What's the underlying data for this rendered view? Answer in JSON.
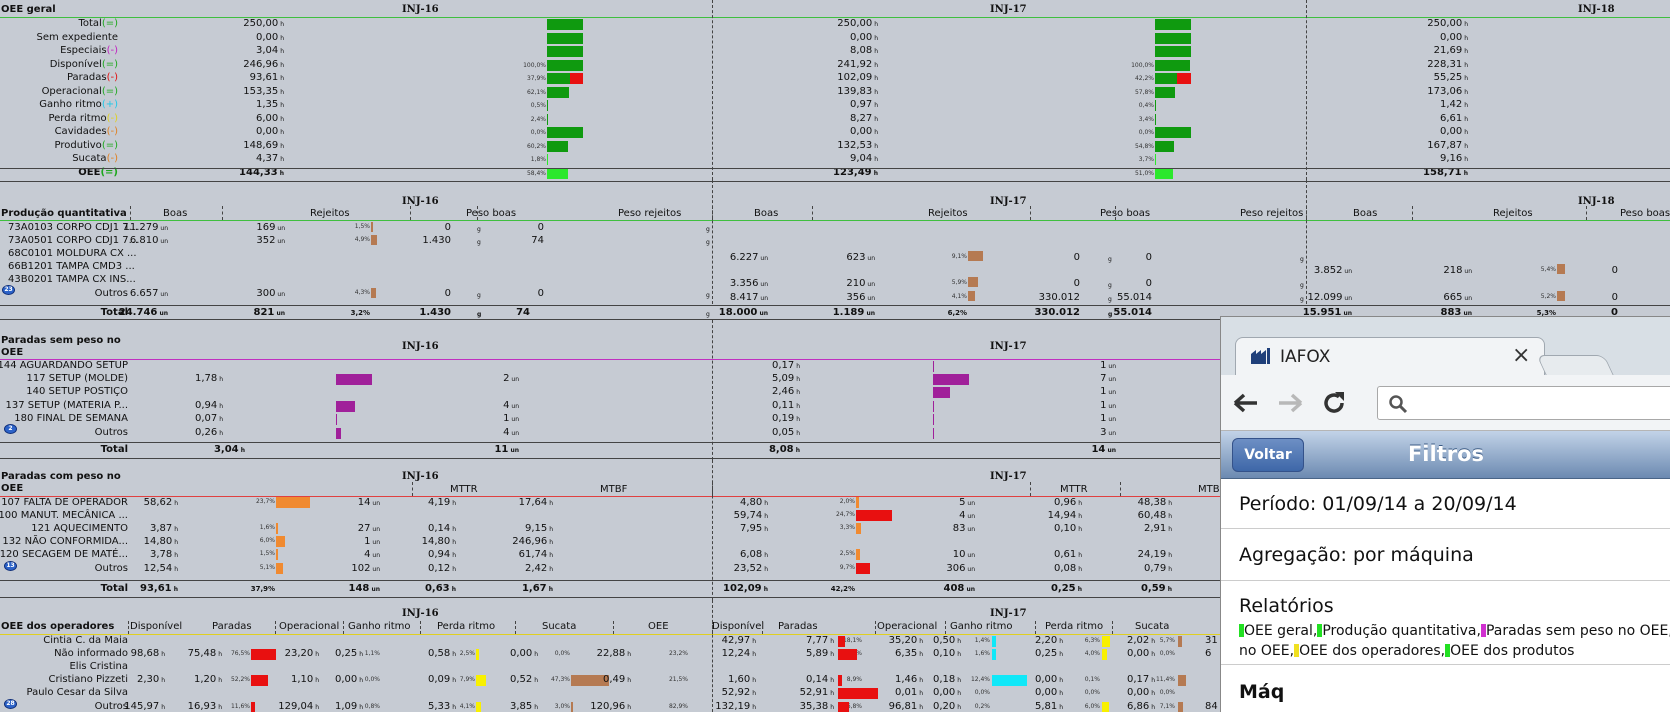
{
  "oee_geral": {
    "title": "OEE geral",
    "machines": [
      "INJ-16",
      "INJ-17",
      "INJ-18"
    ],
    "rows": [
      {
        "label": "Total",
        "op": "(=)",
        "op_color": "#1ea81e",
        "values": [
          "250,00",
          "250,00",
          "250,00"
        ],
        "pct": [
          "",
          ""
        ]
      },
      {
        "label": "Sem expediente",
        "op": "",
        "op_color": "",
        "values": [
          "0,00",
          "0,00",
          "0,00"
        ],
        "pct": [
          "",
          ""
        ]
      },
      {
        "label": "Especiais",
        "op": "(-)",
        "op_color": "#c020c0",
        "values": [
          "3,04",
          "8,08",
          "21,69"
        ],
        "pct": [
          "",
          ""
        ]
      },
      {
        "label": "Disponível",
        "op": "(=)",
        "op_color": "#1ea81e",
        "values": [
          "246,96",
          "241,92",
          "228,31"
        ],
        "pct": [
          "100,0%",
          "100,0%"
        ]
      },
      {
        "label": "Paradas",
        "op": "(-)",
        "op_color": "#e01010",
        "values": [
          "93,61",
          "102,09",
          "55,25"
        ],
        "pct": [
          "37,9%",
          "42,2%"
        ]
      },
      {
        "label": "Operacional",
        "op": "(=)",
        "op_color": "#1ea81e",
        "values": [
          "153,35",
          "139,83",
          "173,06"
        ],
        "pct": [
          "62,1%",
          "57,8%"
        ]
      },
      {
        "label": "Ganho ritmo",
        "op": "(+)",
        "op_color": "#20c8e8",
        "values": [
          "1,35",
          "0,97",
          "1,42"
        ],
        "pct": [
          "0,5%",
          "0,4%"
        ]
      },
      {
        "label": "Perda ritmo",
        "op": "(-)",
        "op_color": "#e0d020",
        "values": [
          "6,00",
          "8,27",
          "6,61"
        ],
        "pct": [
          "2,4%",
          "3,4%"
        ]
      },
      {
        "label": "Cavidades",
        "op": "(-)",
        "op_color": "#e08020",
        "values": [
          "0,00",
          "0,00",
          "0,00"
        ],
        "pct": [
          "0,0%",
          "0,0%"
        ]
      },
      {
        "label": "Produtivo",
        "op": "(=)",
        "op_color": "#1ea81e",
        "values": [
          "148,69",
          "132,53",
          "167,87"
        ],
        "pct": [
          "60,2%",
          "54,8%"
        ]
      },
      {
        "label": "Sucata",
        "op": "(-)",
        "op_color": "#e08020",
        "values": [
          "4,37",
          "9,04",
          "9,16"
        ],
        "pct": [
          "1,8%",
          "3,7%"
        ]
      }
    ],
    "oee": {
      "label": "OEE",
      "op": "(=)",
      "op_color": "#1ea81e",
      "values": [
        "144,33",
        "123,49",
        "158,71"
      ],
      "pct": [
        "58,4%",
        "51,0%"
      ]
    }
  },
  "producao": {
    "title": "Produção quantitativa",
    "machines": [
      "INJ-16",
      "INJ-17",
      "INJ-18"
    ],
    "cols": [
      "Boas",
      "Rejeitos",
      "Peso boas",
      "Peso rejeitos"
    ],
    "rows": [
      {
        "label": "73A0103 CORPO CDJ1 7...",
        "m16": [
          "11.279",
          "169",
          "1,5%",
          "0",
          "0"
        ],
        "m17": null,
        "m18": null
      },
      {
        "label": "73A0501 CORPO CDJ1 7...",
        "m16": [
          "6.810",
          "352",
          "4,9%",
          "1.430",
          "74"
        ],
        "m17": null,
        "m18": null
      },
      {
        "label": "68C0101 MOLDURA CX ...",
        "m16": null,
        "m17": [
          "6.227",
          "623",
          "9,1%",
          "0",
          "0"
        ],
        "m18": null
      },
      {
        "label": "66B1201 TAMPA CMD3 ...",
        "m16": null,
        "m17": null,
        "m18": [
          "3.852",
          "218",
          "5,4%",
          "0"
        ]
      },
      {
        "label": "43B0201 TAMPA CX INS...",
        "m16": null,
        "m17": [
          "3.356",
          "210",
          "5,9%",
          "0",
          "0"
        ],
        "m18": null
      },
      {
        "label": "Outros",
        "m16": [
          "6.657",
          "300",
          "4,3%",
          "0",
          "0"
        ],
        "m17": [
          "8.417",
          "356",
          "4,1%",
          "330.012",
          "55.014"
        ],
        "m18": [
          "12.099",
          "665",
          "5,2%",
          "0"
        ]
      }
    ],
    "more_count": "23",
    "total": {
      "label": "Total",
      "m16": [
        "24.746",
        "821",
        "3,2%",
        "1.430",
        "74"
      ],
      "m17": [
        "18.000",
        "1.189",
        "6,2%",
        "330.012",
        "55.014"
      ],
      "m18": [
        "15.951",
        "883",
        "5,3%",
        "0"
      ]
    }
  },
  "paradas_sem_peso": {
    "title_1": "Paradas sem peso no",
    "title_2": "OEE",
    "machines": [
      "INJ-16",
      "INJ-17"
    ],
    "rows": [
      {
        "label": "144 AGUARDANDO SETUP",
        "m16": [
          "",
          ""
        ],
        "m17": [
          "0,17",
          "1"
        ]
      },
      {
        "label": "117 SETUP (MOLDE)",
        "m16": [
          "1,78",
          "2"
        ],
        "m17": [
          "5,09",
          "7"
        ]
      },
      {
        "label": "140 SETUP POSTIÇO",
        "m16": [
          "",
          ""
        ],
        "m17": [
          "2,46",
          "1"
        ]
      },
      {
        "label": "137 SETUP (MATERIA P...",
        "m16": [
          "0,94",
          "4"
        ],
        "m17": [
          "0,11",
          "1"
        ]
      },
      {
        "label": "180 FINAL DE SEMANA",
        "m16": [
          "0,07",
          "1"
        ],
        "m17": [
          "0,19",
          "1"
        ]
      },
      {
        "label": "Outros",
        "m16": [
          "0,26",
          "4"
        ],
        "m17": [
          "0,05",
          "3"
        ]
      }
    ],
    "more_count": "2",
    "total": {
      "label": "Total",
      "m16": [
        "3,04",
        "11"
      ],
      "m17": [
        "8,08",
        "14"
      ]
    }
  },
  "paradas_com_peso": {
    "title_1": "Paradas com peso no",
    "title_2": "OEE",
    "machines": [
      "INJ-16",
      "INJ-17"
    ],
    "cols": [
      "MTTR",
      "MTBF"
    ],
    "rows": [
      {
        "label": "107 FALTA DE OPERADOR",
        "m16": [
          "58,62",
          "23,7%",
          "14",
          "4,19",
          "17,64"
        ],
        "m17": [
          "4,80",
          "2,0%",
          "5",
          "0,96",
          "48,38"
        ]
      },
      {
        "label": "100 MANUT. MECÂNICA ...",
        "m16": [
          "",
          "",
          "",
          "",
          ""
        ],
        "m17": [
          "59,74",
          "24,7%",
          "4",
          "14,94",
          "60,48"
        ]
      },
      {
        "label": "121 AQUECIMENTO",
        "m16": [
          "3,87",
          "1,6%",
          "27",
          "0,14",
          "9,15"
        ],
        "m17": [
          "7,95",
          "3,3%",
          "83",
          "0,10",
          "2,91"
        ]
      },
      {
        "label": "132 NÃO CONFORMIDA...",
        "m16": [
          "14,80",
          "6,0%",
          "1",
          "14,80",
          "246,96"
        ],
        "m17": [
          "",
          "",
          "",
          "",
          ""
        ]
      },
      {
        "label": "120 SECAGEM DE MATÉ...",
        "m16": [
          "3,78",
          "1,5%",
          "4",
          "0,94",
          "61,74"
        ],
        "m17": [
          "6,08",
          "2,5%",
          "10",
          "0,61",
          "24,19"
        ]
      },
      {
        "label": "Outros",
        "m16": [
          "12,54",
          "5,1%",
          "102",
          "0,12",
          "2,42"
        ],
        "m17": [
          "23,52",
          "9,7%",
          "306",
          "0,08",
          "0,79"
        ]
      }
    ],
    "more_count": "13",
    "total": {
      "label": "Total",
      "m16": [
        "93,61",
        "37,9%",
        "148",
        "0,63",
        "1,67"
      ],
      "m17": [
        "102,09",
        "42,2%",
        "408",
        "0,25",
        "0,59"
      ]
    }
  },
  "operadores": {
    "title": "OEE dos operadores",
    "machines": [
      "INJ-16",
      "INJ-17"
    ],
    "cols": [
      "Disponível",
      "Paradas",
      "Operacional",
      "Ganho ritmo",
      "Perda ritmo",
      "Sucata",
      "OEE"
    ],
    "rows": [
      {
        "label": "Cintia C. da Maia",
        "m17": [
          "42,97",
          "7,77",
          "18,1%",
          "35,20",
          "0,50",
          "1,4%",
          "2,20",
          "6,3%",
          "2,02",
          "5,7%"
        ]
      },
      {
        "label": "Não informado",
        "m16": [
          "98,68",
          "75,48",
          "76,5%",
          "23,20",
          "0,25",
          "1,1%",
          "0,58",
          "2,5%",
          "0,00",
          "0,0%",
          "22,88",
          "23,2%"
        ],
        "m17": [
          "12,24",
          "5,89",
          "48,2%",
          "6,35",
          "0,10",
          "1,6%",
          "0,25",
          "4,0%",
          "0,00",
          "0,0%"
        ]
      },
      {
        "label": "Elis Cristina"
      },
      {
        "label": "Cristiano Pizzeti",
        "m16": [
          "2,30",
          "1,20",
          "52,2%",
          "1,10",
          "0,00",
          "0,0%",
          "0,09",
          "7,9%",
          "0,52",
          "47,3%",
          "0,49",
          "21,5%"
        ],
        "m17": [
          "1,60",
          "0,14",
          "8,9%",
          "1,46",
          "0,18",
          "12,4%",
          "0,00",
          "0,1%",
          "0,17",
          "11,4%"
        ]
      },
      {
        "label": "Paulo Cesar da Silva",
        "m17": [
          "52,92",
          "52,91",
          "100,0%",
          "0,01",
          "0,00",
          "0,0%",
          "0,00",
          "0,0%",
          "0,00",
          "0,0%"
        ]
      },
      {
        "label": "Outros",
        "m16": [
          "145,97",
          "16,93",
          "11,6%",
          "129,04",
          "1,09",
          "0,8%",
          "5,33",
          "4,1%",
          "3,85",
          "3,0%",
          "120,96",
          "82,9%"
        ],
        "m17": [
          "132,19",
          "35,38",
          "26,8%",
          "96,81",
          "0,20",
          "0,2%",
          "5,81",
          "6,0%",
          "6,86",
          "7,1%"
        ]
      }
    ],
    "more_count": "28",
    "cut_values": [
      "31",
      "6",
      "84"
    ]
  },
  "units": {
    "h": "h",
    "un": "un",
    "g": "g"
  },
  "browser": {
    "tab_title": "IAFOX",
    "close_glyph": "×",
    "back_label": "Voltar",
    "nav_title": "Filtros",
    "periodo": "Período: 01/09/14 a 20/09/14",
    "agregacao": "Agregação: por máquina",
    "relatorios_title": "Relatórios",
    "relatorios_line1": [
      "OEE geral,",
      "Produção quantitativa,",
      "Paradas sem peso no OEE,",
      "Pa"
    ],
    "relatorios_line2": [
      "no OEE,",
      "OEE dos operadores,",
      "OEE dos produtos"
    ],
    "relatorios_colors": [
      "#22e022",
      "#22e022",
      "#d030d0",
      "#e01010",
      "#f0e020",
      "#22e022"
    ],
    "next_title": "Máq"
  },
  "colors": {
    "oee_bar_green": "#0f9a0f",
    "oee_bar_bright": "#2ce82c",
    "paradas_red": "#e81010",
    "brown": "#b57a52",
    "purple": "#a0209a",
    "orange": "#f08a30",
    "yellow": "#f8f000",
    "cyan": "#10e8f8"
  }
}
